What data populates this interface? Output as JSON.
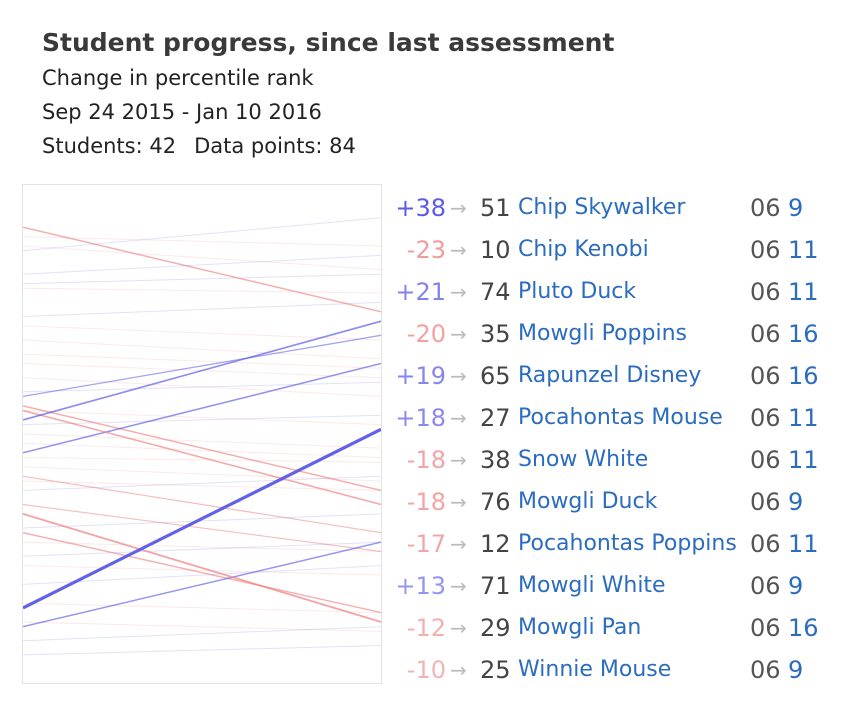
{
  "header": {
    "title": "Student progress, since last assessment",
    "subtitle": "Change in percentile rank",
    "date_range": "Sep 24 2015 - Jan 10 2016",
    "students_label": "Students: 42",
    "datapoints_label": "Data points: 84"
  },
  "arrow_glyph": "→",
  "colors": {
    "positive": "#5a5ae6",
    "negative": "#ee7f7f",
    "link": "#2b6cbf"
  },
  "chart_data": {
    "type": "line",
    "title": "Student progress, since last assessment",
    "subtitle": "Change in percentile rank",
    "ylim": [
      0,
      100
    ],
    "x": [
      "Sep 24 2015",
      "Jan 10 2016"
    ],
    "series": [
      {
        "name": "Chip Skywalker",
        "values": [
          13,
          51
        ],
        "delta": "+38",
        "rank": "51",
        "grade": "06",
        "class": "9"
      },
      {
        "name": "Chip Kenobi",
        "values": [
          33,
          10
        ],
        "delta": "-23",
        "rank": "10",
        "grade": "06",
        "class": "11"
      },
      {
        "name": "Pluto Duck",
        "values": [
          53,
          74
        ],
        "delta": "+21",
        "rank": "74",
        "grade": "06",
        "class": "11"
      },
      {
        "name": "Mowgli Poppins",
        "values": [
          55,
          35
        ],
        "delta": "-20",
        "rank": "35",
        "grade": "06",
        "class": "16"
      },
      {
        "name": "Rapunzel Disney",
        "values": [
          46,
          65
        ],
        "delta": "+19",
        "rank": "65",
        "grade": "06",
        "class": "16"
      },
      {
        "name": "Pocahontas Mouse",
        "values": [
          9,
          27
        ],
        "delta": "+18",
        "rank": "27",
        "grade": "06",
        "class": "11"
      },
      {
        "name": "Snow White",
        "values": [
          56,
          38
        ],
        "delta": "-18",
        "rank": "38",
        "grade": "06",
        "class": "11"
      },
      {
        "name": "Mowgli Duck",
        "values": [
          94,
          76
        ],
        "delta": "-18",
        "rank": "76",
        "grade": "06",
        "class": "9"
      },
      {
        "name": "Pocahontas Poppins",
        "values": [
          29,
          12
        ],
        "delta": "-17",
        "rank": "12",
        "grade": "06",
        "class": "11"
      },
      {
        "name": "Mowgli White",
        "values": [
          58,
          71
        ],
        "delta": "+13",
        "rank": "71",
        "grade": "06",
        "class": "9"
      },
      {
        "name": "Mowgli Pan",
        "values": [
          41,
          29
        ],
        "delta": "-12",
        "rank": "29",
        "grade": "06",
        "class": "16"
      },
      {
        "name": "Winnie Mouse",
        "values": [
          35,
          25
        ],
        "delta": "-10",
        "rank": "25",
        "grade": "06",
        "class": "9"
      }
    ],
    "background_series": [
      [
        89,
        96
      ],
      [
        90,
        85
      ],
      [
        84,
        88
      ],
      [
        82,
        84
      ],
      [
        81,
        80
      ],
      [
        73,
        70
      ],
      [
        70,
        66
      ],
      [
        65,
        62
      ],
      [
        62,
        58
      ],
      [
        59,
        61
      ],
      [
        55,
        52
      ],
      [
        52,
        54
      ],
      [
        50,
        47
      ],
      [
        48,
        45
      ],
      [
        43,
        40
      ],
      [
        40,
        38
      ],
      [
        38,
        41
      ],
      [
        30,
        33
      ],
      [
        27,
        25
      ],
      [
        22,
        20
      ],
      [
        18,
        22
      ],
      [
        14,
        12
      ],
      [
        10,
        8
      ],
      [
        6,
        9
      ],
      [
        3,
        5
      ],
      [
        92,
        90
      ],
      [
        75,
        78
      ],
      [
        67,
        64
      ],
      [
        45,
        44
      ],
      [
        24,
        27
      ]
    ]
  }
}
